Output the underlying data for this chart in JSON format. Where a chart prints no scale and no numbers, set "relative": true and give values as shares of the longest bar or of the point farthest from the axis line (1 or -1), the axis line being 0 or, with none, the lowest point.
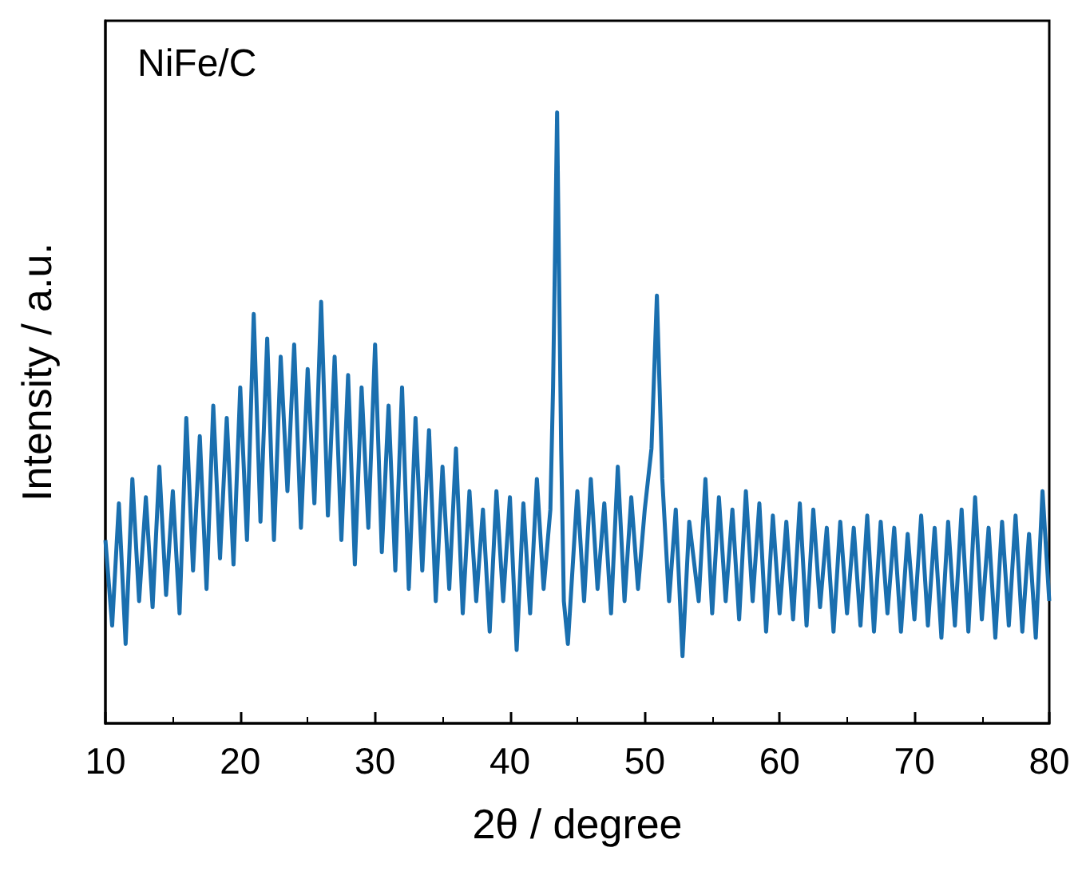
{
  "chart_data": {
    "type": "line",
    "relative": true,
    "xlabel": "2θ / degree",
    "ylabel": "Intensity / a.u.",
    "annotations": [
      "NiFe/C"
    ],
    "xlim": [
      10,
      80
    ],
    "xticks": [
      10,
      20,
      30,
      40,
      50,
      60,
      70,
      80
    ],
    "marker": "none",
    "line_style": "solid",
    "series": [
      {
        "color": "#1a6faf",
        "x": [
          10,
          10.5,
          11,
          11.5,
          12,
          12.5,
          13,
          13.5,
          14,
          14.5,
          15,
          15.5,
          16,
          16.5,
          17,
          17.5,
          18,
          18.5,
          19,
          19.5,
          20,
          20.5,
          21,
          21.5,
          22,
          22.5,
          23,
          23.5,
          24,
          24.5,
          25,
          25.5,
          26,
          26.5,
          27,
          27.5,
          28,
          28.5,
          29,
          29.5,
          30,
          30.5,
          31,
          31.5,
          32,
          32.5,
          33,
          33.5,
          34,
          34.5,
          35,
          35.5,
          36,
          36.5,
          37,
          37.5,
          38,
          38.5,
          39,
          39.5,
          40,
          40.5,
          41,
          41.5,
          42,
          42.5,
          43,
          43.2,
          43.5,
          43.8,
          44,
          44.3,
          45,
          45.5,
          46,
          46.5,
          47,
          47.5,
          48,
          48.5,
          49,
          49.5,
          50,
          50.5,
          50.9,
          51.3,
          51.8,
          52.3,
          52.8,
          53.3,
          54,
          54.5,
          55,
          55.5,
          56,
          56.5,
          57,
          57.5,
          58,
          58.5,
          59,
          59.5,
          60,
          60.5,
          61,
          61.5,
          62,
          62.5,
          63,
          63.5,
          64,
          64.5,
          65,
          65.5,
          66,
          66.5,
          67,
          67.5,
          68,
          68.5,
          69,
          69.5,
          70,
          70.5,
          71,
          71.5,
          72,
          72.5,
          73,
          73.5,
          74,
          74.5,
          75,
          75.5,
          76,
          76.5,
          77,
          77.5,
          78,
          78.5,
          79,
          79.5,
          80
        ],
        "values": [
          0.3,
          0.16,
          0.36,
          0.13,
          0.4,
          0.2,
          0.37,
          0.19,
          0.42,
          0.21,
          0.38,
          0.18,
          0.5,
          0.25,
          0.47,
          0.22,
          0.52,
          0.27,
          0.5,
          0.26,
          0.55,
          0.3,
          0.67,
          0.33,
          0.63,
          0.3,
          0.6,
          0.38,
          0.62,
          0.32,
          0.58,
          0.36,
          0.69,
          0.34,
          0.6,
          0.3,
          0.57,
          0.26,
          0.55,
          0.32,
          0.62,
          0.28,
          0.52,
          0.25,
          0.55,
          0.22,
          0.5,
          0.25,
          0.48,
          0.2,
          0.42,
          0.22,
          0.45,
          0.18,
          0.38,
          0.2,
          0.35,
          0.15,
          0.38,
          0.2,
          0.37,
          0.12,
          0.36,
          0.18,
          0.4,
          0.22,
          0.35,
          0.55,
          1.0,
          0.45,
          0.2,
          0.13,
          0.38,
          0.2,
          0.4,
          0.22,
          0.36,
          0.18,
          0.42,
          0.2,
          0.37,
          0.22,
          0.35,
          0.45,
          0.7,
          0.4,
          0.2,
          0.35,
          0.11,
          0.33,
          0.2,
          0.4,
          0.18,
          0.37,
          0.2,
          0.35,
          0.17,
          0.38,
          0.2,
          0.36,
          0.15,
          0.34,
          0.18,
          0.33,
          0.17,
          0.36,
          0.16,
          0.35,
          0.19,
          0.32,
          0.15,
          0.33,
          0.18,
          0.32,
          0.16,
          0.34,
          0.15,
          0.33,
          0.18,
          0.32,
          0.15,
          0.31,
          0.17,
          0.34,
          0.16,
          0.32,
          0.14,
          0.33,
          0.16,
          0.35,
          0.15,
          0.37,
          0.17,
          0.32,
          0.14,
          0.33,
          0.16,
          0.34,
          0.15,
          0.31,
          0.14,
          0.38,
          0.2
        ]
      }
    ]
  }
}
